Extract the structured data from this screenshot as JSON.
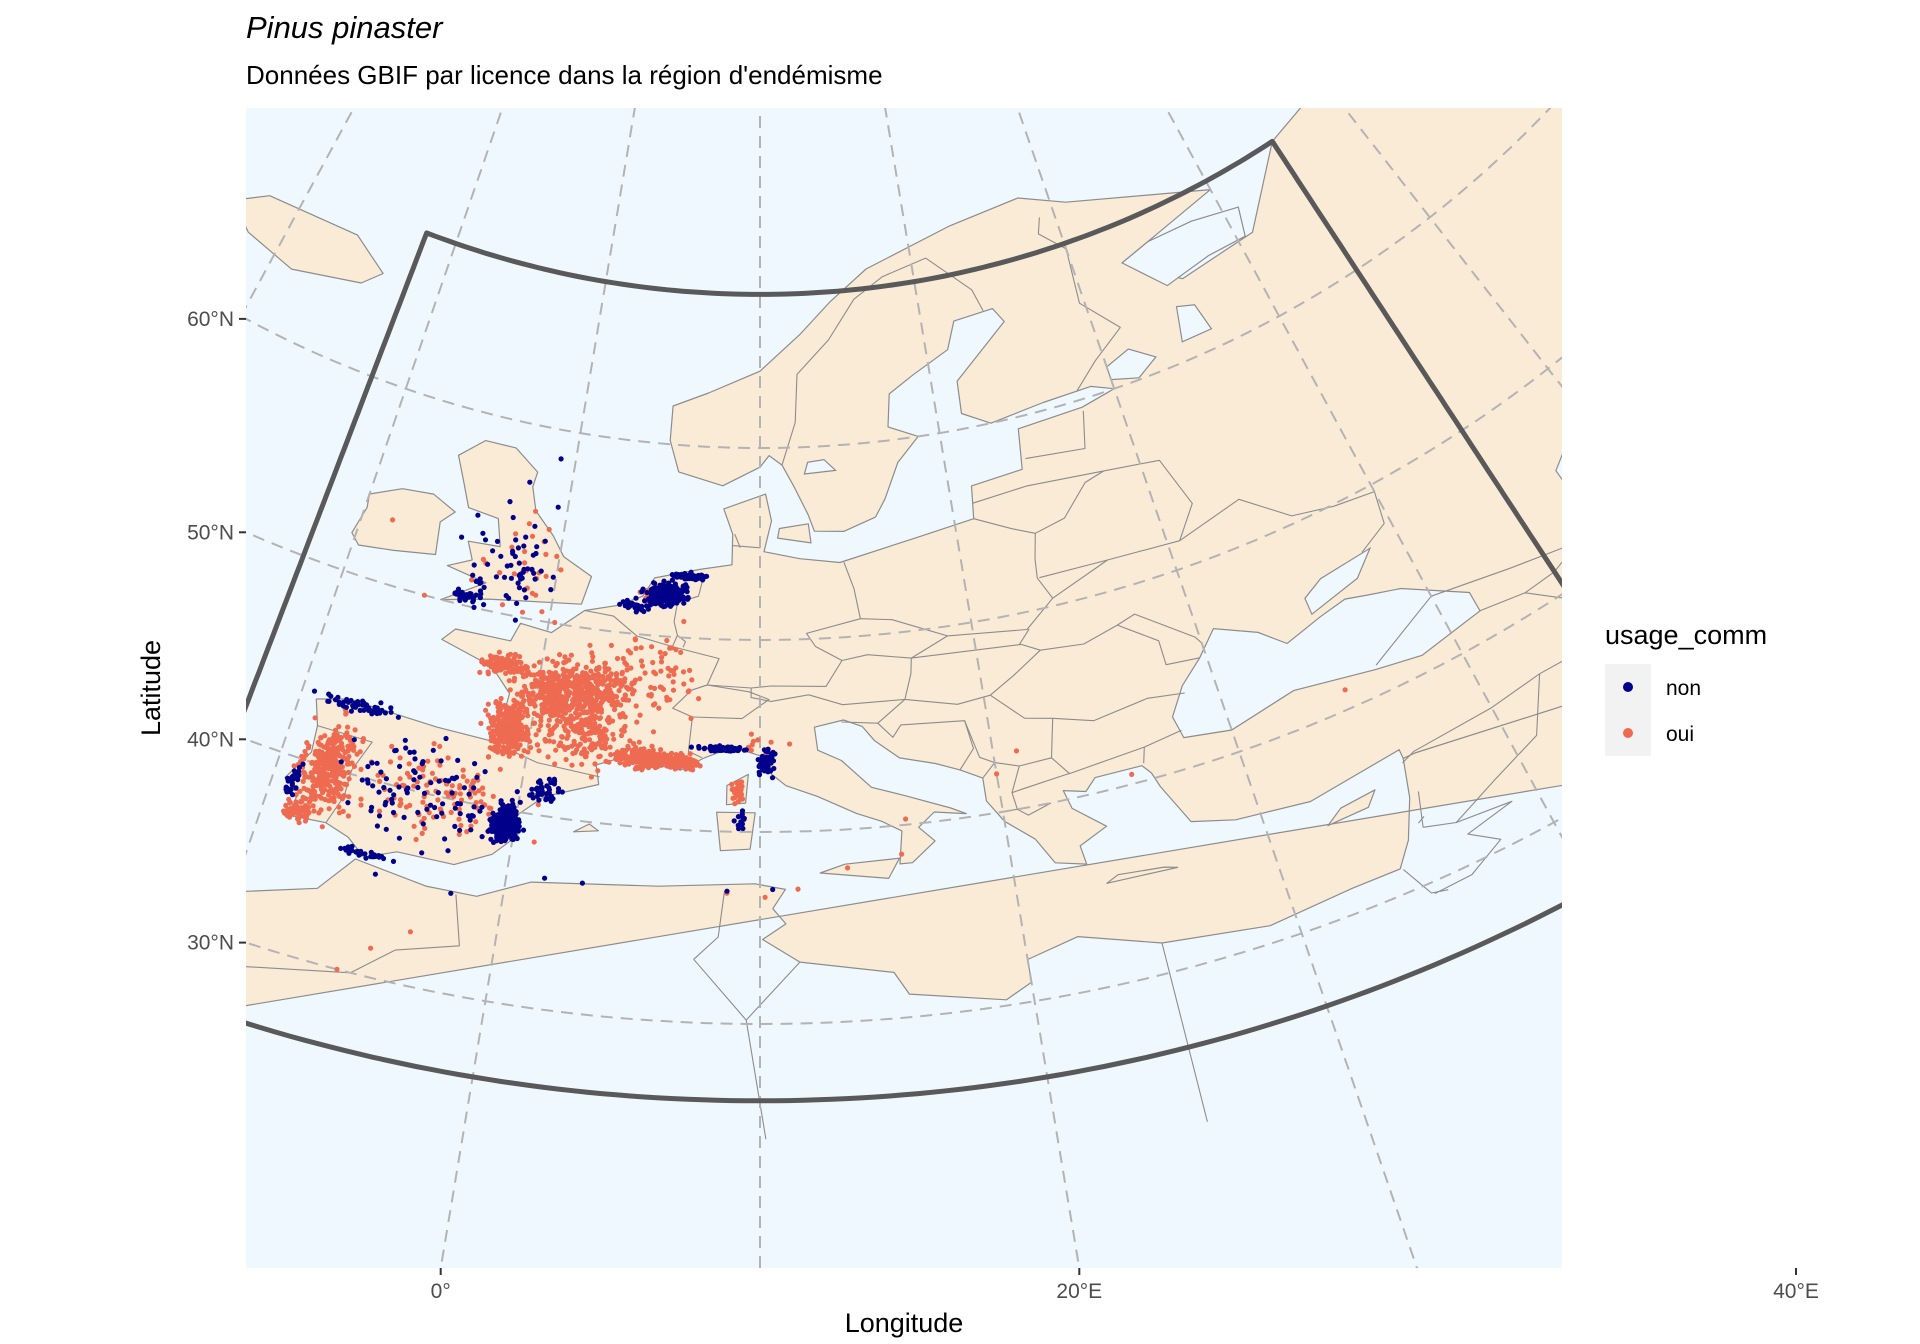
{
  "chart_data": {
    "type": "scatter",
    "title": "Pinus pinaster",
    "subtitle": "Données GBIF par licence dans la région d'endémisme",
    "xlabel": "Longitude",
    "ylabel": "Latitude",
    "x_ticks": [
      {
        "value": 0,
        "label": "0°"
      },
      {
        "value": 20,
        "label": "20°E"
      },
      {
        "value": 40,
        "label": "40°E"
      }
    ],
    "y_ticks": [
      {
        "value": 30,
        "label": "30°N"
      },
      {
        "value": 40,
        "label": "40°N"
      },
      {
        "value": 50,
        "label": "50°N"
      },
      {
        "value": 60,
        "label": "60°N"
      }
    ],
    "xlim": [
      -12,
      45
    ],
    "ylim": [
      26,
      68
    ],
    "region_bounds": {
      "lon": [
        -12,
        45
      ],
      "lat": [
        26,
        68
      ]
    },
    "legend": {
      "title": "usage_comm",
      "position": "right",
      "entries": [
        {
          "label": "non",
          "color": "#00008b"
        },
        {
          "label": "oui",
          "color": "#ee6a50"
        }
      ]
    },
    "colors": {
      "land": "#faebd7",
      "sea": "#f0f8ff",
      "border": "#8c8c8c",
      "graticule": "#b3b3b3",
      "region_outline": "#595959"
    },
    "series": [
      {
        "name": "oui",
        "clusters": [
          {
            "lon": -7.9,
            "lat": 40.0,
            "spread": [
              0.9,
              2.1
            ],
            "n": 340
          },
          {
            "lon": -8.6,
            "lat": 37.5,
            "spread": [
              0.6,
              0.6
            ],
            "n": 60
          },
          {
            "lon": -0.9,
            "lat": 44.2,
            "spread": [
              0.8,
              1.2
            ],
            "n": 330
          },
          {
            "lon": 0.8,
            "lat": 46.4,
            "spread": [
              1.3,
              1.1
            ],
            "n": 260
          },
          {
            "lon": -1.6,
            "lat": 47.4,
            "spread": [
              0.9,
              0.5
            ],
            "n": 120
          },
          {
            "lon": 2.4,
            "lat": 46.9,
            "spread": [
              1.8,
              1.3
            ],
            "n": 260
          },
          {
            "lon": 2.3,
            "lat": 44.7,
            "spread": [
              1.8,
              1.4
            ],
            "n": 200
          },
          {
            "lon": 4.9,
            "lat": 43.6,
            "spread": [
              1.2,
              0.5
            ],
            "n": 180
          },
          {
            "lon": 6.4,
            "lat": 43.5,
            "spread": [
              0.8,
              0.4
            ],
            "n": 120
          },
          {
            "lon": -3.5,
            "lat": 40.0,
            "spread": [
              3.0,
              2.2
            ],
            "n": 110
          },
          {
            "lon": 9.1,
            "lat": 42.1,
            "spread": [
              0.2,
              0.5
            ],
            "n": 40
          },
          {
            "lon": 5.0,
            "lat": 48.0,
            "spread": [
              2.5,
              2.0
            ],
            "n": 70
          },
          {
            "lon": -1.5,
            "lat": 52.5,
            "spread": [
              1.5,
              2.0
            ],
            "n": 30
          },
          {
            "lon": 4.8,
            "lat": 52.1,
            "spread": [
              0.6,
              0.4
            ],
            "n": 20
          },
          {
            "lon": 10.0,
            "lat": 44.5,
            "spread": [
              1.0,
              0.6
            ],
            "n": 12
          }
        ],
        "points": [
          [
            -5.5,
            30.0
          ],
          [
            -4.5,
            31.5
          ],
          [
            -3.2,
            32.8
          ],
          [
            -8.5,
            53.3
          ],
          [
            11.5,
            37.0
          ],
          [
            15.7,
            38.5
          ],
          [
            16.0,
            40.3
          ],
          [
            21.0,
            43.0
          ],
          [
            25.5,
            40.5
          ],
          [
            35.0,
            41.0
          ],
          [
            -6.0,
            50.0
          ],
          [
            8.7,
            36.8
          ],
          [
            10.2,
            36.6
          ],
          [
            13.5,
            38.0
          ],
          [
            20.0,
            42.0
          ]
        ]
      },
      {
        "name": "non",
        "clusters": [
          {
            "lon": -0.4,
            "lat": 39.3,
            "spread": [
              0.45,
              0.8
            ],
            "n": 320
          },
          {
            "lon": 5.5,
            "lat": 52.2,
            "spread": [
              0.7,
              0.5
            ],
            "n": 260
          },
          {
            "lon": 6.5,
            "lat": 53.2,
            "spread": [
              0.9,
              0.15
            ],
            "n": 60
          },
          {
            "lon": 4.0,
            "lat": 51.5,
            "spread": [
              0.6,
              0.25
            ],
            "n": 40
          },
          {
            "lon": 8.4,
            "lat": 44.3,
            "spread": [
              0.9,
              0.12
            ],
            "n": 80
          },
          {
            "lon": 10.3,
            "lat": 43.6,
            "spread": [
              0.3,
              0.6
            ],
            "n": 60
          },
          {
            "lon": -7.5,
            "lat": 43.5,
            "spread": [
              1.3,
              0.3
            ],
            "n": 50
          },
          {
            "lon": -9.2,
            "lat": 38.8,
            "spread": [
              0.2,
              0.8
            ],
            "n": 30
          },
          {
            "lon": -4.0,
            "lat": 40.0,
            "spread": [
              3.0,
              2.3
            ],
            "n": 95
          },
          {
            "lon": -2.5,
            "lat": 52.5,
            "spread": [
              1.8,
              2.0
            ],
            "n": 60
          },
          {
            "lon": -4.0,
            "lat": 50.5,
            "spread": [
              0.7,
              0.2
            ],
            "n": 30
          },
          {
            "lon": -5.5,
            "lat": 36.2,
            "spread": [
              0.9,
              0.15
            ],
            "n": 30
          },
          {
            "lon": 1.0,
            "lat": 41.3,
            "spread": [
              0.7,
              0.5
            ],
            "n": 40
          },
          {
            "lon": 9.2,
            "lat": 40.5,
            "spread": [
              0.2,
              0.5
            ],
            "n": 15
          }
        ],
        "points": [
          [
            -5.0,
            35.3
          ],
          [
            -2.0,
            35.2
          ],
          [
            1.5,
            36.8
          ],
          [
            3.0,
            36.8
          ],
          [
            10.5,
            37.0
          ],
          [
            8.7,
            36.9
          ],
          [
            -6.2,
            36.0
          ],
          [
            -3.0,
            55.8
          ],
          [
            -2.2,
            57.0
          ],
          [
            -0.8,
            58.5
          ],
          [
            -1.5,
            54.8
          ],
          [
            -0.5,
            56.0
          ]
        ]
      }
    ]
  }
}
